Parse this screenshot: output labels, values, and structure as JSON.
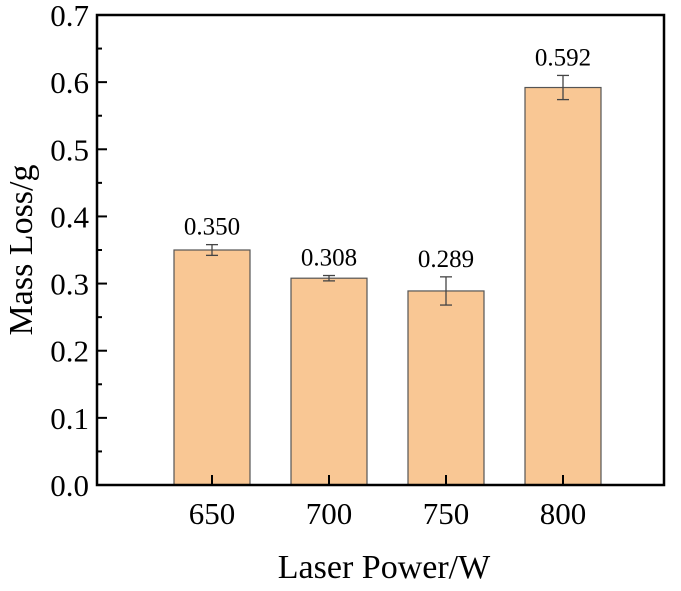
{
  "chart_data": {
    "type": "bar",
    "title": "",
    "xlabel": "Laser Power/W",
    "ylabel": "Mass Loss/g",
    "categories": [
      "650",
      "700",
      "750",
      "800"
    ],
    "values": [
      0.35,
      0.308,
      0.289,
      0.592
    ],
    "errors": [
      0.008,
      0.004,
      0.021,
      0.018
    ],
    "data_labels": [
      "0.350",
      "0.308",
      "0.289",
      "0.592"
    ],
    "ylim": [
      0,
      0.7
    ],
    "yticks": [
      "0.0",
      "0.1",
      "0.2",
      "0.3",
      "0.4",
      "0.5",
      "0.6",
      "0.7"
    ],
    "grid": false,
    "bar_color": "#F9C794",
    "bar_edge_color": "#555555"
  }
}
